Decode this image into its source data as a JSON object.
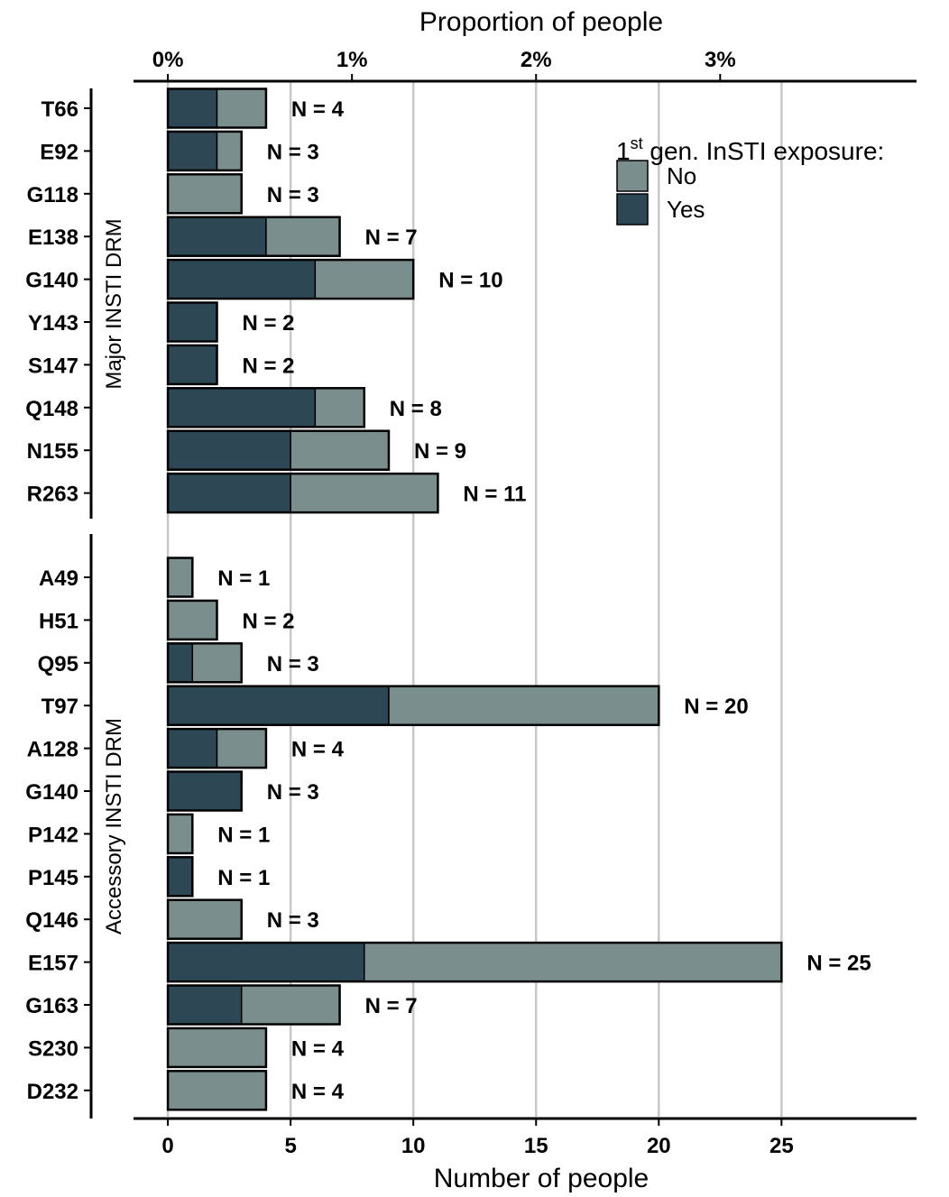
{
  "chart_data": {
    "type": "bar",
    "orientation": "horizontal",
    "stacked": true,
    "xlabel": "Number of people",
    "x2label": "Proportion of people",
    "xlim": [
      -1.4,
      30.5
    ],
    "x_ticks": [
      0,
      5,
      10,
      15,
      20,
      25
    ],
    "x_tick_labels": [
      "0",
      "5",
      "10",
      "15",
      "20",
      "25"
    ],
    "x2_ticks": [
      0,
      7.5,
      15,
      22.5
    ],
    "x2_tick_labels": [
      "0%",
      "1%",
      "2%",
      "3%"
    ],
    "grid": "vertical major lines",
    "colors": {
      "No": "#7a8e8d",
      "Yes": "#2e4755",
      "grid": "#c8c8c8"
    },
    "n_label_prefix": "N = ",
    "legend": {
      "title_base": "1",
      "title_sup": "st",
      "title_rest": " gen. InSTI exposure:",
      "position": "top-right",
      "entries": [
        {
          "key": "No",
          "label": "No"
        },
        {
          "key": "Yes",
          "label": "Yes"
        }
      ]
    },
    "panels": [
      {
        "title": "Major INSTI DRM",
        "categories": [
          "T66",
          "E92",
          "G118",
          "E138",
          "G140",
          "Y143",
          "S147",
          "Q148",
          "N155",
          "R263"
        ],
        "series": [
          {
            "name": "Yes",
            "values": [
              2,
              2,
              0,
              4,
              6,
              2,
              2,
              6,
              5,
              5
            ]
          },
          {
            "name": "No",
            "values": [
              2,
              1,
              3,
              3,
              4,
              0,
              0,
              2,
              4,
              6
            ]
          }
        ],
        "totals": [
          4,
          3,
          3,
          7,
          10,
          2,
          2,
          8,
          9,
          11
        ]
      },
      {
        "title": "Accessory INSTI DRM",
        "categories": [
          "A49",
          "H51",
          "Q95",
          "T97",
          "A128",
          "G140",
          "P142",
          "P145",
          "Q146",
          "E157",
          "G163",
          "S230",
          "D232"
        ],
        "series": [
          {
            "name": "Yes",
            "values": [
              0,
              0,
              1,
              9,
              2,
              3,
              0,
              1,
              0,
              8,
              3,
              0,
              0
            ]
          },
          {
            "name": "No",
            "values": [
              1,
              2,
              2,
              11,
              2,
              0,
              1,
              0,
              3,
              17,
              4,
              4,
              4
            ]
          }
        ],
        "totals": [
          1,
          2,
          3,
          20,
          4,
          3,
          1,
          1,
          3,
          25,
          7,
          4,
          4
        ]
      }
    ]
  }
}
